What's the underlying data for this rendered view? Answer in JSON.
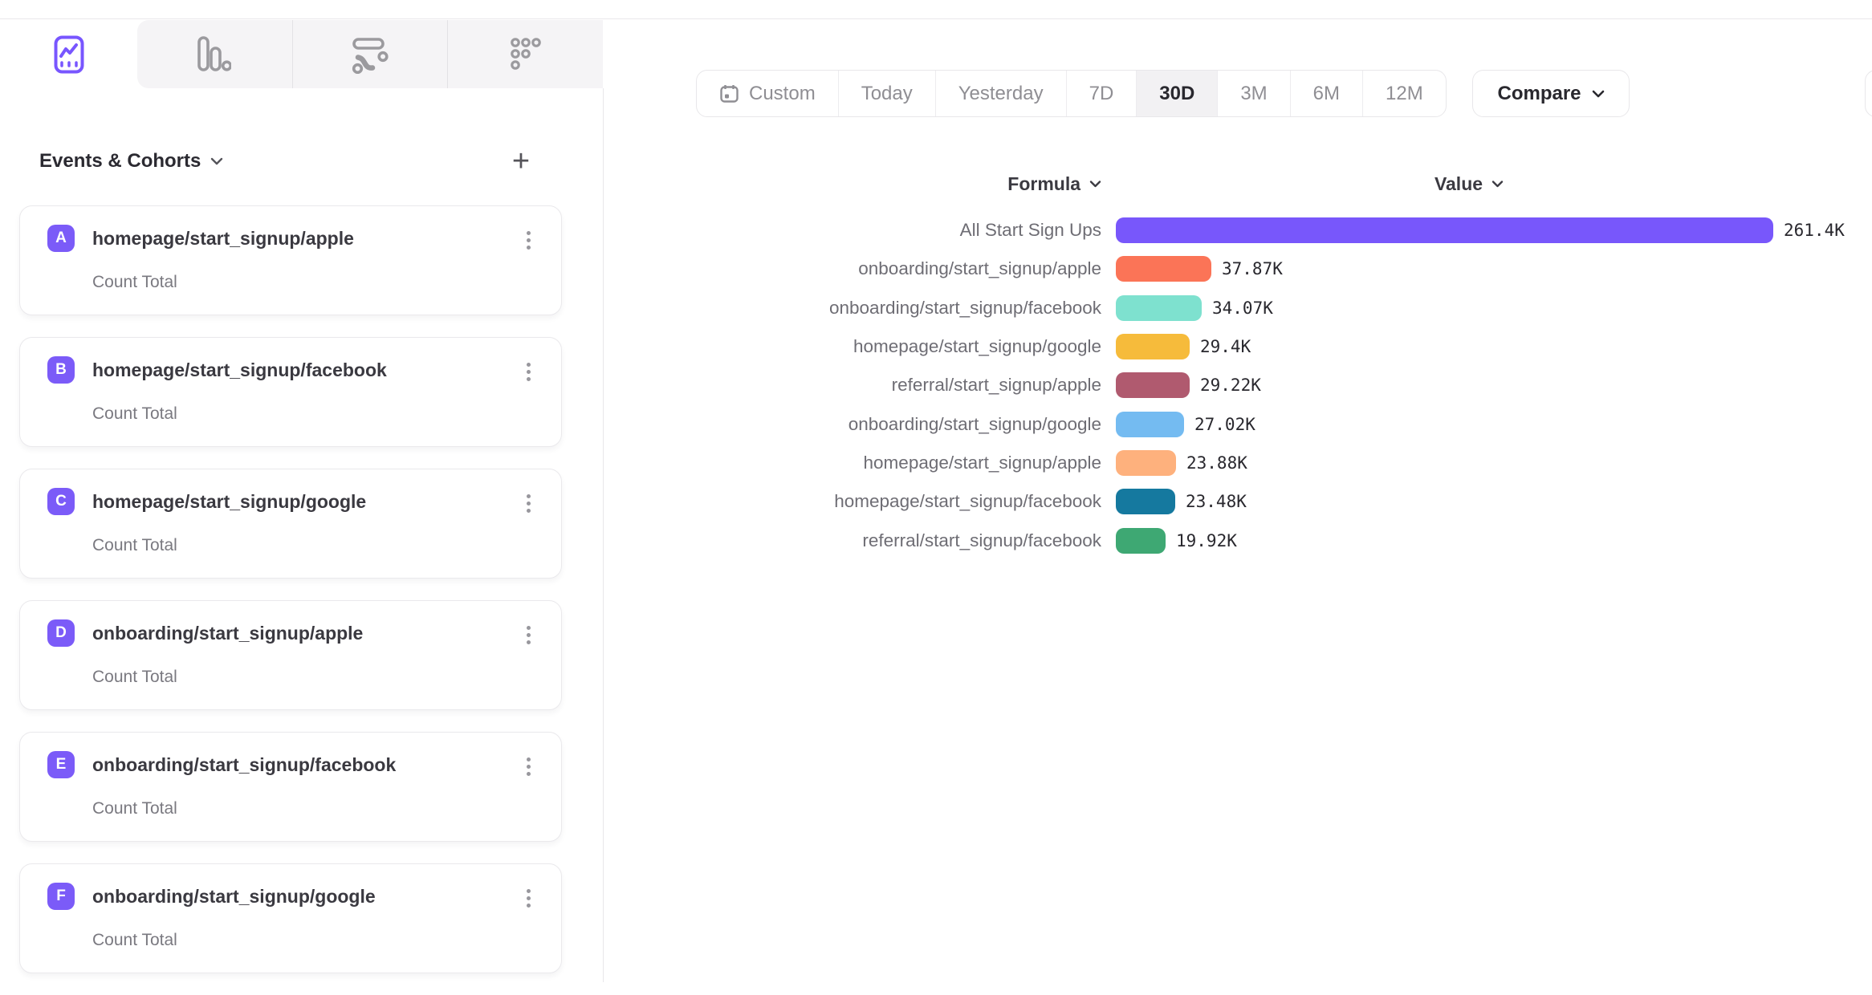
{
  "tabs": [
    {
      "id": "insights",
      "active": true
    },
    {
      "id": "funnels",
      "active": false
    },
    {
      "id": "flows",
      "active": false
    },
    {
      "id": "retention",
      "active": false
    }
  ],
  "sidebar": {
    "title": "Events & Cohorts",
    "add_button": "+",
    "events": [
      {
        "badge": "A",
        "name": "homepage/start_signup/apple",
        "metric": "Count Total"
      },
      {
        "badge": "B",
        "name": "homepage/start_signup/facebook",
        "metric": "Count Total"
      },
      {
        "badge": "C",
        "name": "homepage/start_signup/google",
        "metric": "Count Total"
      },
      {
        "badge": "D",
        "name": "onboarding/start_signup/apple",
        "metric": "Count Total"
      },
      {
        "badge": "E",
        "name": "onboarding/start_signup/facebook",
        "metric": "Count Total"
      },
      {
        "badge": "F",
        "name": "onboarding/start_signup/google",
        "metric": "Count Total"
      }
    ]
  },
  "toolbar": {
    "date_ranges": [
      {
        "label": "Custom",
        "icon": "calendar-icon",
        "active": false
      },
      {
        "label": "Today",
        "active": false
      },
      {
        "label": "Yesterday",
        "active": false
      },
      {
        "label": "7D",
        "active": false
      },
      {
        "label": "30D",
        "active": true
      },
      {
        "label": "3M",
        "active": false
      },
      {
        "label": "6M",
        "active": false
      },
      {
        "label": "12M",
        "active": false
      }
    ],
    "compare_label": "Compare"
  },
  "chart_data": {
    "type": "bar",
    "orientation": "horizontal",
    "column_headers": {
      "formula": "Formula",
      "value": "Value"
    },
    "categories": [
      "All Start Sign Ups",
      "onboarding/start_signup/apple",
      "onboarding/start_signup/facebook",
      "homepage/start_signup/google",
      "referral/start_signup/apple",
      "onboarding/start_signup/google",
      "homepage/start_signup/apple",
      "homepage/start_signup/facebook",
      "referral/start_signup/facebook"
    ],
    "values": [
      261400,
      37870,
      34070,
      29400,
      29220,
      27020,
      23880,
      23480,
      19920
    ],
    "value_labels": [
      "261.4K",
      "37.87K",
      "34.07K",
      "29.4K",
      "29.22K",
      "27.02K",
      "23.88K",
      "23.48K",
      "19.92K"
    ],
    "colors": [
      "#7857FB",
      "#FB7457",
      "#7EE1CF",
      "#F6BB3B",
      "#B05A6F",
      "#74BBF1",
      "#FEB17D",
      "#15799F",
      "#3EA873"
    ],
    "xlim": [
      0,
      261400
    ],
    "grid": false,
    "legend": false
  },
  "colors": {
    "accent": "#7856FF",
    "badge": "#7B5BF8",
    "active_segment_bg": "#F2F1F3",
    "divider": "#E8E7EA"
  }
}
